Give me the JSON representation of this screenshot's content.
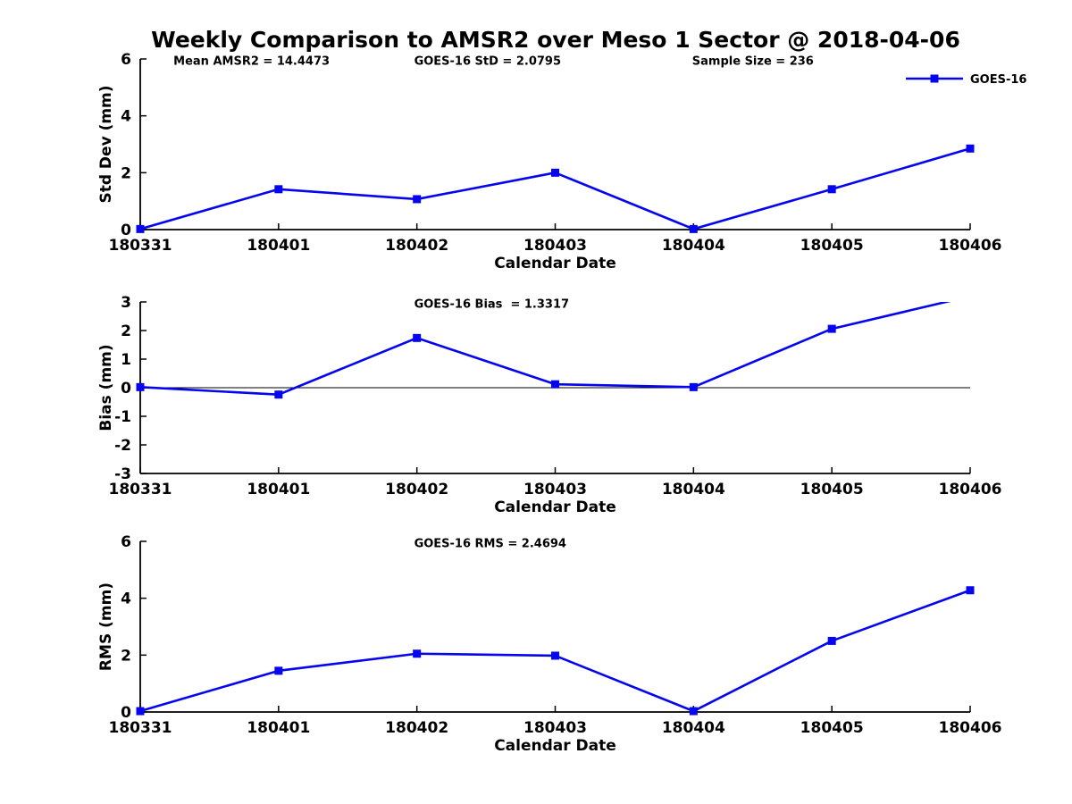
{
  "figure": {
    "title": "Weekly Comparison to AMSR2 over Meso 1 Sector @ 2018-04-06",
    "background": "#ffffff"
  },
  "colors": {
    "line": "#0505ee",
    "axis": "#000000",
    "text": "#000000"
  },
  "legend": {
    "label": "GOES-16",
    "position": "top-right"
  },
  "chart_data": [
    {
      "type": "line",
      "panel": "std-dev",
      "ylabel": "Std Dev (mm)",
      "xlabel": "Calendar Date",
      "categories": [
        "180331",
        "180401",
        "180402",
        "180403",
        "180404",
        "180405",
        "180406"
      ],
      "series": [
        {
          "name": "GOES-16",
          "values": [
            0.02,
            1.42,
            1.07,
            2.0,
            0.02,
            1.42,
            2.85
          ]
        }
      ],
      "ylim": [
        0,
        6
      ],
      "yticks": [
        0,
        2,
        4,
        6
      ],
      "grid": false,
      "zero_line": false,
      "legend": true,
      "marker": "filled-square",
      "annotations": [
        {
          "text": "Mean AMSR2 = 14.4473",
          "xfrac": 0.04
        },
        {
          "text": "GOES-16 StD = 2.0795",
          "xfrac": 0.33
        },
        {
          "text": "Sample Size = 236",
          "xfrac": 0.665
        }
      ]
    },
    {
      "type": "line",
      "panel": "bias",
      "ylabel": "Bias (mm)",
      "xlabel": "Calendar Date",
      "categories": [
        "180331",
        "180401",
        "180402",
        "180403",
        "180404",
        "180405",
        "180406"
      ],
      "series": [
        {
          "name": "GOES-16",
          "values": [
            0.02,
            -0.24,
            1.74,
            0.12,
            0.02,
            2.06,
            3.2
          ]
        }
      ],
      "ylim": [
        -3,
        3
      ],
      "yticks": [
        -3,
        -2,
        -1,
        0,
        1,
        2,
        3
      ],
      "grid": false,
      "zero_line": true,
      "legend": false,
      "marker": "filled-square",
      "annotations": [
        {
          "text": "GOES-16 Bias  = 1.3317",
          "xfrac": 0.33
        }
      ]
    },
    {
      "type": "line",
      "panel": "rms",
      "ylabel": "RMS (mm)",
      "xlabel": "Calendar Date",
      "categories": [
        "180331",
        "180401",
        "180402",
        "180403",
        "180404",
        "180405",
        "180406"
      ],
      "series": [
        {
          "name": "GOES-16",
          "values": [
            0.03,
            1.45,
            2.05,
            1.98,
            0.03,
            2.5,
            4.28
          ]
        }
      ],
      "ylim": [
        0,
        6
      ],
      "yticks": [
        0,
        2,
        4,
        6
      ],
      "grid": false,
      "zero_line": false,
      "legend": false,
      "marker": "filled-square",
      "annotations": [
        {
          "text": "GOES-16 RMS = 2.4694",
          "xfrac": 0.33
        }
      ]
    }
  ]
}
